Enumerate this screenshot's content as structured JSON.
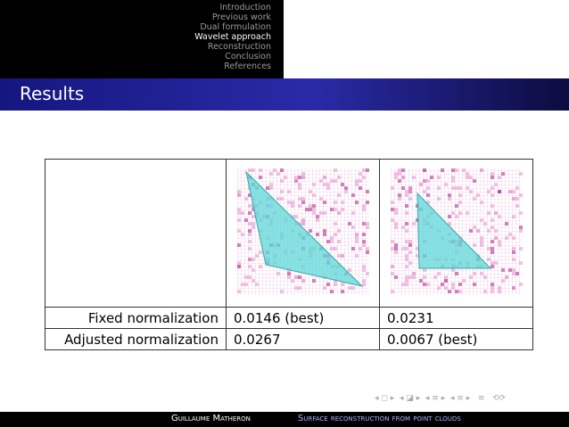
{
  "nav": {
    "sections": [
      "Introduction",
      "Previous work",
      "Dual formulation",
      "Wavelet approach",
      "Reconstruction",
      "Conclusion",
      "References"
    ]
  },
  "header": {
    "title": "Results"
  },
  "table": {
    "rows": [
      [
        "Fixed normalization",
        "0.0146 (best)",
        "0.0231"
      ],
      [
        "Adjusted normalization",
        "0.0267",
        "0.0067 (best)"
      ]
    ]
  },
  "footer": {
    "author": "Guillaume Matheron",
    "title": "Surface reconstruction from point clouds"
  }
}
